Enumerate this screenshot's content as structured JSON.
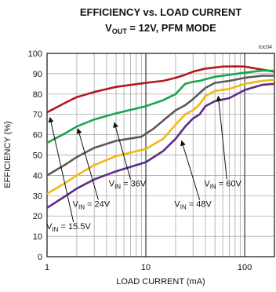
{
  "chart_data": {
    "type": "line",
    "title": "EFFICIENCY vs. LOAD CURRENT",
    "subtitle": {
      "pre": "V",
      "sub": "OUT",
      "post": " = 12V, PFM MODE"
    },
    "tag": "toc04",
    "xlabel": "LOAD CURRENT  (mA)",
    "ylabel": "EFFICIENCY (%)",
    "xscale": "log",
    "xlim": [
      1,
      200
    ],
    "ylim": [
      0,
      100
    ],
    "xticks": [
      1,
      10,
      100
    ],
    "xtick_labels": [
      "1",
      "10",
      "100"
    ],
    "yticks": [
      0,
      10,
      20,
      30,
      40,
      50,
      60,
      70,
      80,
      90,
      100
    ],
    "ytick_labels": [
      "0",
      "10",
      "20",
      "30",
      "40",
      "50",
      "60",
      "70",
      "80",
      "90",
      "100"
    ],
    "grid": true,
    "series": [
      {
        "name": "VIN = 15.5V",
        "color": "#b3191d",
        "points": [
          [
            1,
            71
          ],
          [
            1.5,
            75.5
          ],
          [
            2,
            78.5
          ],
          [
            3,
            81
          ],
          [
            5,
            83.5
          ],
          [
            10,
            85.5
          ],
          [
            15,
            86.5
          ],
          [
            20,
            88
          ],
          [
            25,
            89.5
          ],
          [
            30,
            91
          ],
          [
            40,
            92.5
          ],
          [
            60,
            93.5
          ],
          [
            80,
            93.6
          ],
          [
            100,
            93.5
          ],
          [
            150,
            92
          ],
          [
            200,
            91
          ]
        ]
      },
      {
        "name": "VIN = 24V",
        "color": "#1aa64a",
        "points": [
          [
            1,
            56
          ],
          [
            1.5,
            60.5
          ],
          [
            2,
            64
          ],
          [
            3,
            67.5
          ],
          [
            5,
            70.5
          ],
          [
            10,
            74
          ],
          [
            15,
            77
          ],
          [
            20,
            80
          ],
          [
            25,
            85
          ],
          [
            30,
            86
          ],
          [
            35,
            86.5
          ],
          [
            50,
            88.5
          ],
          [
            100,
            90.5
          ],
          [
            150,
            91.5
          ],
          [
            200,
            91.5
          ]
        ]
      },
      {
        "name": "VIN = 36V",
        "color": "#595959",
        "points": [
          [
            1,
            40
          ],
          [
            1.5,
            45
          ],
          [
            2,
            49
          ],
          [
            3,
            53.5
          ],
          [
            5,
            57
          ],
          [
            9,
            59
          ],
          [
            10,
            60.5
          ],
          [
            12,
            63
          ],
          [
            15,
            67
          ],
          [
            20,
            72
          ],
          [
            25,
            74.5
          ],
          [
            30,
            77.5
          ],
          [
            35,
            80.5
          ],
          [
            40,
            83
          ],
          [
            50,
            85.5
          ],
          [
            70,
            86.5
          ],
          [
            100,
            88
          ],
          [
            150,
            89
          ],
          [
            200,
            89
          ]
        ]
      },
      {
        "name": "VIN = 48V",
        "color": "#f2b715",
        "points": [
          [
            1,
            31
          ],
          [
            1.5,
            36
          ],
          [
            2,
            40
          ],
          [
            3,
            45
          ],
          [
            5,
            49.5
          ],
          [
            10,
            53
          ],
          [
            15,
            58
          ],
          [
            20,
            65
          ],
          [
            25,
            70
          ],
          [
            30,
            72
          ],
          [
            35,
            75
          ],
          [
            40,
            79
          ],
          [
            50,
            81.5
          ],
          [
            70,
            82.5
          ],
          [
            100,
            85
          ],
          [
            150,
            86.5
          ],
          [
            200,
            87
          ]
        ]
      },
      {
        "name": "VIN = 60V",
        "color": "#5b2d84",
        "points": [
          [
            1,
            24
          ],
          [
            1.5,
            29.5
          ],
          [
            2,
            33.5
          ],
          [
            3,
            38
          ],
          [
            5,
            42
          ],
          [
            10,
            46.5
          ],
          [
            15,
            52
          ],
          [
            20,
            58
          ],
          [
            25,
            64
          ],
          [
            30,
            68
          ],
          [
            35,
            70
          ],
          [
            40,
            74
          ],
          [
            50,
            76.5
          ],
          [
            70,
            78
          ],
          [
            100,
            82
          ],
          [
            150,
            84.5
          ],
          [
            200,
            85
          ]
        ]
      }
    ],
    "annotations": [
      {
        "label": "V",
        "sub": "IN",
        "post": " = 15.5V",
        "text_at": [
          1.65,
          13.5
        ],
        "arrow_from": [
          1.85,
          17
        ],
        "arrow_to": [
          1.07,
          68.5
        ]
      },
      {
        "label": "V",
        "sub": "IN",
        "post": " = 24V",
        "text_at": [
          2.8,
          24.5
        ],
        "arrow_from": [
          3.3,
          28
        ],
        "arrow_to": [
          2.05,
          63
        ]
      },
      {
        "label": "V",
        "sub": "IN",
        "post": " = 36V",
        "text_at": [
          6.5,
          34.5
        ],
        "arrow_from": [
          7.0,
          38
        ],
        "arrow_to": [
          4.8,
          66
        ]
      },
      {
        "label": "V",
        "sub": "IN",
        "post": " = 48V",
        "text_at": [
          30,
          24.5
        ],
        "arrow_from": [
          35,
          28
        ],
        "arrow_to": [
          23,
          57
        ]
      },
      {
        "label": "V",
        "sub": "IN",
        "post": " = 60V",
        "text_at": [
          60,
          34.5
        ],
        "arrow_from": [
          66,
          38
        ],
        "arrow_to": [
          54,
          79
        ]
      }
    ]
  }
}
